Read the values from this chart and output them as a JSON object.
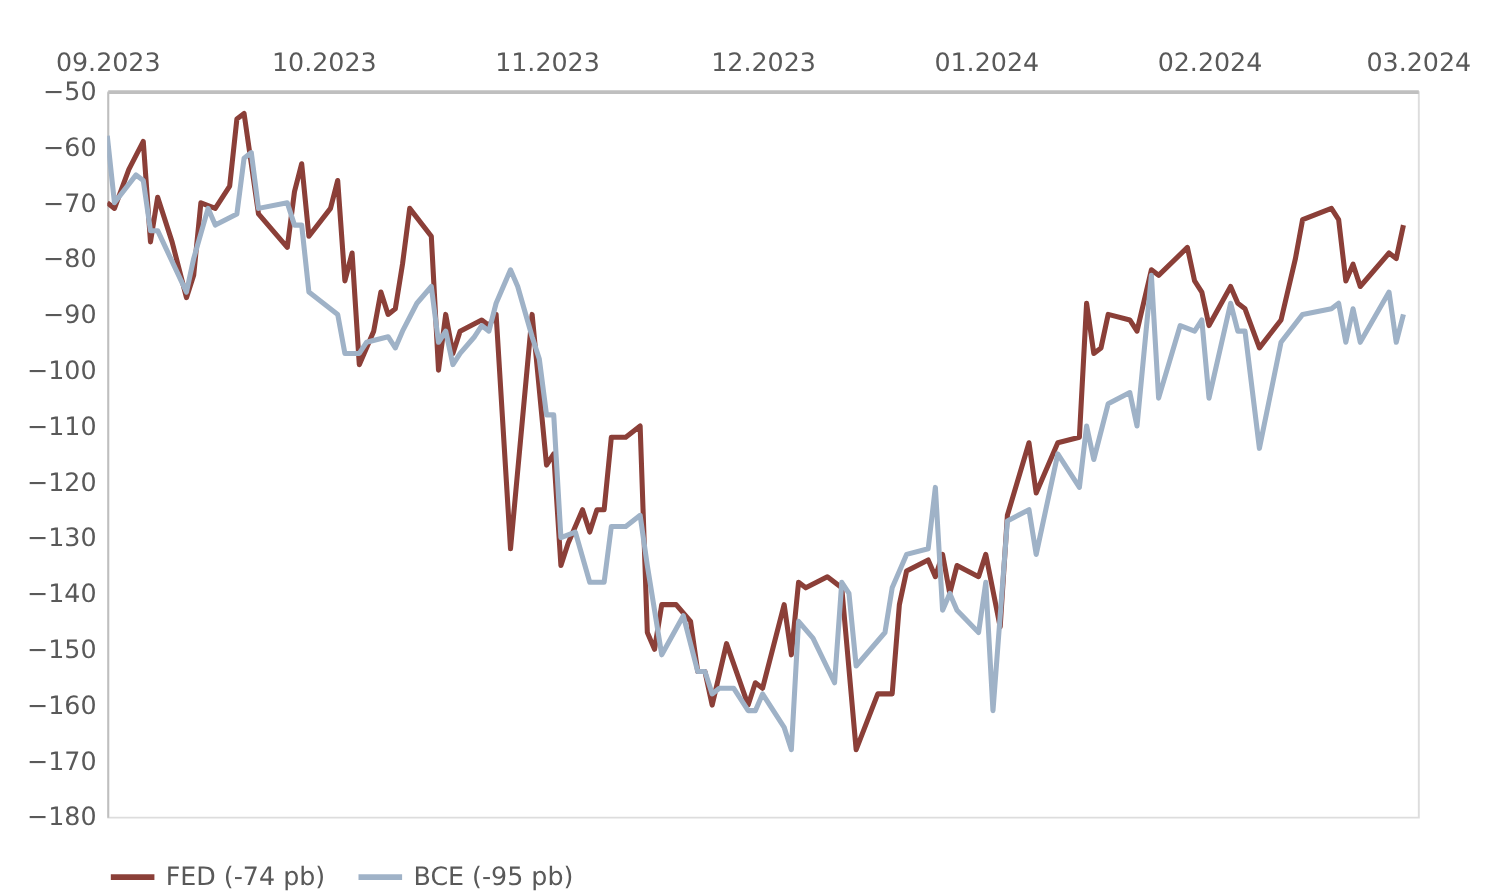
{
  "chart_data": {
    "type": "line",
    "xlim": [
      "2023-09-01",
      "2024-03-01"
    ],
    "xticks": [
      {
        "value": "2023-09-01",
        "label": "09.2023"
      },
      {
        "value": "2023-10-01",
        "label": "10.2023"
      },
      {
        "value": "2023-11-01",
        "label": "11.2023"
      },
      {
        "value": "2023-12-01",
        "label": "12.2023"
      },
      {
        "value": "2024-01-01",
        "label": "01.2024"
      },
      {
        "value": "2024-02-01",
        "label": "02.2024"
      },
      {
        "value": "2024-03-01",
        "label": "03.2024"
      }
    ],
    "ylim": [
      -180,
      -50
    ],
    "yticks": [
      -50,
      -60,
      -70,
      -80,
      -90,
      -100,
      -110,
      -120,
      -130,
      -140,
      -150,
      -160,
      -170,
      -180
    ],
    "grid": false,
    "legend": "bottom",
    "marker": "none",
    "line_style": "solid",
    "series": [
      {
        "name": "FED (-74 pb)",
        "color": "#8b3f38",
        "x": [
          "2023-09-01",
          "2023-09-02",
          "2023-09-04",
          "2023-09-06",
          "2023-09-07",
          "2023-09-08",
          "2023-09-10",
          "2023-09-12",
          "2023-09-13",
          "2023-09-14",
          "2023-09-16",
          "2023-09-18",
          "2023-09-19",
          "2023-09-20",
          "2023-09-22",
          "2023-09-26",
          "2023-09-27",
          "2023-09-28",
          "2023-09-29",
          "2023-10-02",
          "2023-10-03",
          "2023-10-04",
          "2023-10-05",
          "2023-10-06",
          "2023-10-08",
          "2023-10-09",
          "2023-10-10",
          "2023-10-11",
          "2023-10-12",
          "2023-10-13",
          "2023-10-16",
          "2023-10-17",
          "2023-10-18",
          "2023-10-19",
          "2023-10-20",
          "2023-10-23",
          "2023-10-24",
          "2023-10-25",
          "2023-10-27",
          "2023-10-30",
          "2023-11-01",
          "2023-11-02",
          "2023-11-03",
          "2023-11-04",
          "2023-11-06",
          "2023-11-07",
          "2023-11-08",
          "2023-11-09",
          "2023-11-10",
          "2023-11-12",
          "2023-11-14",
          "2023-11-15",
          "2023-11-16",
          "2023-11-17",
          "2023-11-19",
          "2023-11-21",
          "2023-11-22",
          "2023-11-23",
          "2023-11-24",
          "2023-11-26",
          "2023-11-29",
          "2023-11-30",
          "2023-12-01",
          "2023-12-04",
          "2023-12-05",
          "2023-12-06",
          "2023-12-07",
          "2023-12-10",
          "2023-12-12",
          "2023-12-14",
          "2023-12-17",
          "2023-12-19",
          "2023-12-20",
          "2023-12-21",
          "2023-12-24",
          "2023-12-25",
          "2023-12-26",
          "2023-12-27",
          "2023-12-28",
          "2023-12-31",
          "2024-01-01",
          "2024-01-03",
          "2024-01-04",
          "2024-01-07",
          "2024-01-08",
          "2024-01-11",
          "2024-01-14",
          "2024-01-15",
          "2024-01-16",
          "2024-01-17",
          "2024-01-18",
          "2024-01-21",
          "2024-01-22",
          "2024-01-24",
          "2024-01-25",
          "2024-01-29",
          "2024-01-30",
          "2024-01-31",
          "2024-02-01",
          "2024-02-04",
          "2024-02-05",
          "2024-02-06",
          "2024-02-08",
          "2024-02-11",
          "2024-02-13",
          "2024-02-14",
          "2024-02-18",
          "2024-02-19",
          "2024-02-20",
          "2024-02-21",
          "2024-02-22",
          "2024-02-26",
          "2024-02-27",
          "2024-02-28"
        ],
        "values": [
          -70,
          -71,
          -64,
          -59,
          -77,
          -69,
          -77,
          -87,
          -83,
          -70,
          -71,
          -67,
          -55,
          -54,
          -72,
          -78,
          -68,
          -63,
          -76,
          -71,
          -66,
          -84,
          -79,
          -99,
          -93,
          -86,
          -90,
          -89,
          -81,
          -71,
          -76,
          -100,
          -90,
          -97,
          -93,
          -91,
          -92,
          -90,
          -132,
          -90,
          -117,
          -115,
          -135,
          -131,
          -125,
          -129,
          -125,
          -125,
          -112,
          -112,
          -110,
          -147,
          -150,
          -142,
          -142,
          -145,
          -154,
          -154,
          -160,
          -149,
          -160,
          -156,
          -157,
          -142,
          -151,
          -138,
          -139,
          -137,
          -139,
          -168,
          -158,
          -158,
          -142,
          -136,
          -134,
          -137,
          -133,
          -140,
          -135,
          -137,
          -133,
          -146,
          -126,
          -113,
          -122,
          -113,
          -112,
          -88,
          -97,
          -96,
          -90,
          -91,
          -93,
          -82,
          -83,
          -78,
          -84,
          -86,
          -92,
          -85,
          -88,
          -89,
          -96,
          -91,
          -80,
          -73,
          -71,
          -73,
          -84,
          -81,
          -85,
          -79,
          -80,
          -74
        ]
      },
      {
        "name": "BCE (-95 pb)",
        "color": "#9fb2c7",
        "x": [
          "2023-09-01",
          "2023-09-02",
          "2023-09-05",
          "2023-09-06",
          "2023-09-07",
          "2023-09-08",
          "2023-09-12",
          "2023-09-13",
          "2023-09-15",
          "2023-09-16",
          "2023-09-19",
          "2023-09-20",
          "2023-09-21",
          "2023-09-22",
          "2023-09-26",
          "2023-09-27",
          "2023-09-28",
          "2023-09-29",
          "2023-10-03",
          "2023-10-04",
          "2023-10-06",
          "2023-10-07",
          "2023-10-10",
          "2023-10-11",
          "2023-10-12",
          "2023-10-14",
          "2023-10-16",
          "2023-10-17",
          "2023-10-18",
          "2023-10-19",
          "2023-10-20",
          "2023-10-22",
          "2023-10-23",
          "2023-10-24",
          "2023-10-25",
          "2023-10-27",
          "2023-10-28",
          "2023-10-30",
          "2023-10-31",
          "2023-11-01",
          "2023-11-02",
          "2023-11-03",
          "2023-11-05",
          "2023-11-07",
          "2023-11-09",
          "2023-11-10",
          "2023-11-12",
          "2023-11-14",
          "2023-11-15",
          "2023-11-17",
          "2023-11-20",
          "2023-11-22",
          "2023-11-23",
          "2023-11-24",
          "2023-11-25",
          "2023-11-27",
          "2023-11-29",
          "2023-11-30",
          "2023-12-01",
          "2023-12-04",
          "2023-12-05",
          "2023-12-06",
          "2023-12-08",
          "2023-12-11",
          "2023-12-12",
          "2023-12-13",
          "2023-12-14",
          "2023-12-18",
          "2023-12-19",
          "2023-12-21",
          "2023-12-24",
          "2023-12-25",
          "2023-12-26",
          "2023-12-27",
          "2023-12-28",
          "2023-12-31",
          "2024-01-01",
          "2024-01-02",
          "2024-01-04",
          "2024-01-07",
          "2024-01-08",
          "2024-01-11",
          "2024-01-14",
          "2024-01-15",
          "2024-01-16",
          "2024-01-18",
          "2024-01-21",
          "2024-01-22",
          "2024-01-24",
          "2024-01-25",
          "2024-01-28",
          "2024-01-30",
          "2024-01-31",
          "2024-02-01",
          "2024-02-04",
          "2024-02-05",
          "2024-02-06",
          "2024-02-08",
          "2024-02-11",
          "2024-02-14",
          "2024-02-18",
          "2024-02-19",
          "2024-02-20",
          "2024-02-21",
          "2024-02-22",
          "2024-02-26",
          "2024-02-27",
          "2024-02-28"
        ],
        "values": [
          -58,
          -70,
          -65,
          -66,
          -75,
          -75,
          -86,
          -80,
          -71,
          -74,
          -72,
          -62,
          -61,
          -71,
          -70,
          -74,
          -74,
          -86,
          -90,
          -97,
          -97,
          -95,
          -94,
          -96,
          -93,
          -88,
          -85,
          -95,
          -93,
          -99,
          -97,
          -94,
          -92,
          -93,
          -88,
          -82,
          -85,
          -94,
          -98,
          -108,
          -108,
          -130,
          -129,
          -138,
          -138,
          -128,
          -128,
          -126,
          -135,
          -151,
          -144,
          -154,
          -154,
          -158,
          -157,
          -157,
          -161,
          -161,
          -158,
          -164,
          -168,
          -145,
          -148,
          -156,
          -138,
          -140,
          -153,
          -147,
          -139,
          -133,
          -132,
          -121,
          -143,
          -140,
          -143,
          -147,
          -138,
          -161,
          -127,
          -125,
          -133,
          -115,
          -121,
          -110,
          -116,
          -106,
          -104,
          -110,
          -83,
          -105,
          -92,
          -93,
          -91,
          -105,
          -88,
          -93,
          -93,
          -114,
          -95,
          -90,
          -89,
          -88,
          -95,
          -89,
          -95,
          -86,
          -95,
          -90
        ]
      }
    ]
  }
}
